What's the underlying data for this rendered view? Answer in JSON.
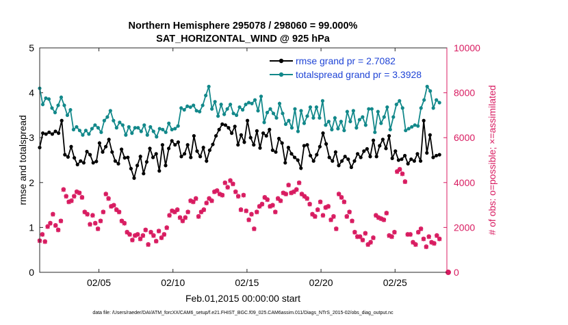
{
  "chart_data": {
    "type": "line",
    "title_line1": "Northern Hemisphere 295078 / 298060 = 99.000%",
    "title_line2": "SAT_HORIZONTAL_WIND @ 925 hPa",
    "xlabel": "Feb.01,2015 00:00:00 start",
    "ylabel_left": "rmse and totalspread",
    "ylabel_right": "# of obs: o=possible; ×=assimilated",
    "footer": "data file: /Users/raeder/DAI/ATM_forcXX/CAM6_setup/f.e21.FHIST_BGC.f09_025.CAM6assim.011/Diags_NTrS_2015-02/obs_diag_output.nc",
    "x_range_days": [
      1,
      28.5
    ],
    "x_ticks": [
      {
        "day": 5,
        "label": "02/05"
      },
      {
        "day": 10,
        "label": "02/10"
      },
      {
        "day": 15,
        "label": "02/15"
      },
      {
        "day": 20,
        "label": "02/20"
      },
      {
        "day": 25,
        "label": "02/25"
      }
    ],
    "ylim_left": [
      0,
      5
    ],
    "yticks_left": [
      "0",
      "1",
      "2",
      "3",
      "4",
      "5"
    ],
    "ylim_right": [
      0,
      10000
    ],
    "yticks_right": [
      "0",
      "2000",
      "4000",
      "6000",
      "8000",
      "10000"
    ],
    "legend_position": "top-right",
    "series": [
      {
        "name": "rmse grand pr = 2.7082",
        "axis": "left",
        "color": "#000000",
        "values": [
          2.78,
          3.1,
          3.08,
          3.12,
          3.08,
          3.14,
          3.1,
          3.38,
          2.62,
          2.57,
          2.8,
          2.55,
          2.4,
          2.48,
          2.44,
          2.69,
          2.62,
          2.44,
          2.47,
          2.88,
          2.68,
          2.8,
          2.96,
          2.68,
          2.48,
          2.42,
          2.74,
          2.55,
          2.56,
          2.31,
          2.1,
          2.38,
          2.58,
          2.2,
          2.46,
          2.76,
          2.56,
          2.64,
          2.26,
          2.84,
          2.38,
          2.76,
          2.93,
          2.84,
          2.9,
          2.58,
          2.64,
          2.84,
          2.56,
          3.04,
          2.7,
          2.58,
          2.78,
          2.48,
          2.72,
          2.85,
          3.04,
          3.18,
          3.3,
          3.28,
          3.22,
          3.1,
          3.25,
          2.84,
          3.06,
          2.9,
          3.38,
          3.0,
          2.84,
          3.15,
          2.77,
          3.1,
          3.04,
          3.18,
          2.72,
          2.68,
          2.98,
          2.88,
          2.44,
          2.78,
          2.64,
          2.56,
          2.5,
          2.32,
          2.82,
          2.84,
          2.6,
          2.48,
          2.62,
          2.8,
          3.1,
          2.86,
          2.56,
          2.48,
          2.68,
          2.38,
          2.48,
          2.58,
          2.52,
          2.34,
          2.48,
          2.64,
          2.56,
          2.7,
          2.75,
          2.58,
          2.94,
          2.58,
          2.82,
          2.96,
          2.76,
          3.04,
          2.54,
          2.7,
          2.5,
          2.52,
          2.6,
          2.42,
          2.52,
          2.48,
          2.64,
          2.48,
          3.38,
          2.66,
          3.06,
          2.56,
          2.6,
          2.62
        ]
      },
      {
        "name": "totalspread grand pr = 3.3928",
        "axis": "left",
        "color": "#12888A",
        "values": [
          4.1,
          3.74,
          3.88,
          3.86,
          3.66,
          3.56,
          3.72,
          3.9,
          3.72,
          3.5,
          3.62,
          3.18,
          3.24,
          3.16,
          3.06,
          3.16,
          3.08,
          3.2,
          3.28,
          3.22,
          3.12,
          3.38,
          3.46,
          3.6,
          3.38,
          3.22,
          3.34,
          3.28,
          3.06,
          3.24,
          3.1,
          3.22,
          3.22,
          3.14,
          3.28,
          3.06,
          3.24,
          3.14,
          3.02,
          3.2,
          3.18,
          3.12,
          3.32,
          3.18,
          3.2,
          3.26,
          3.66,
          3.62,
          3.7,
          3.68,
          3.72,
          3.6,
          3.58,
          3.72,
          3.94,
          4.14,
          3.64,
          3.8,
          3.48,
          3.74,
          3.52,
          3.64,
          3.74,
          3.54,
          3.5,
          3.68,
          3.62,
          3.74,
          3.78,
          3.76,
          3.84,
          3.6,
          3.92,
          3.34,
          3.56,
          3.64,
          3.54,
          3.44,
          3.76,
          3.54,
          3.3,
          3.38,
          3.22,
          3.64,
          3.14,
          3.6,
          3.32,
          3.48,
          3.68,
          3.44,
          3.68,
          3.44,
          3.82,
          3.28,
          3.36,
          3.18,
          3.44,
          3.2,
          3.36,
          3.16,
          3.58,
          3.36,
          3.6,
          3.22,
          3.4,
          3.46,
          3.28,
          3.64,
          3.64,
          3.12,
          3.58,
          3.32,
          3.46,
          3.68,
          3.18,
          3.46,
          3.74,
          3.82,
          3.66,
          3.16,
          3.2,
          3.24,
          3.28,
          3.26,
          3.66,
          3.84,
          4.14,
          4.04,
          3.66,
          3.84,
          3.78
        ]
      },
      {
        "name": "# of obs possible",
        "axis": "right",
        "color": "#D81B60",
        "marker": "o",
        "values": [
          1420,
          1700,
          1380,
          2050,
          2200,
          2600,
          2100,
          1900,
          2300,
          3700,
          3400,
          3150,
          3200,
          3400,
          3600,
          3550,
          3350,
          2700,
          2600,
          2150,
          2550,
          2200,
          1950,
          2300,
          2700,
          3500,
          3300,
          2950,
          3000,
          2800,
          2700,
          2300,
          2200,
          1800,
          1700,
          1450,
          1650,
          1700,
          1500,
          1650,
          1900,
          1250,
          1800,
          1650,
          1400,
          1850,
          1550,
          1700,
          2000,
          2550,
          2750,
          2700,
          2800,
          2450,
          2300,
          2450,
          2700,
          3200,
          3150,
          3300,
          2500,
          2700,
          2800,
          3100,
          3300,
          3200,
          3600,
          3650,
          3500,
          3450,
          4000,
          3800,
          4100,
          3950,
          3600,
          3400,
          2800,
          3450,
          2750,
          2350,
          2600,
          1950,
          2700,
          2950,
          3050,
          3350,
          3250,
          2950,
          3000,
          2700,
          3300,
          3200,
          3550,
          3500,
          3900,
          3550,
          3600,
          3700,
          4000,
          3500,
          3400,
          3300,
          3050,
          2600,
          2500,
          2800,
          3150,
          2550,
          2900,
          2950,
          2350,
          2500,
          1950,
          3500,
          3350,
          3150,
          2500,
          2700,
          2300,
          1800,
          1600,
          1600,
          1450,
          1750,
          1250,
          1350,
          1550,
          2550,
          2450,
          2400,
          2350,
          2650,
          1650,
          1600,
          1800,
          4500,
          4600,
          4400,
          4050,
          1700,
          1700,
          1350,
          1250,
          1800,
          1950,
          1500,
          1150,
          1600,
          1350,
          1300,
          1650,
          1500
        ]
      },
      {
        "name": "# of obs assimilated",
        "axis": "right",
        "color": "#D81B60",
        "marker": "x",
        "values": [
          1400,
          1680,
          1360,
          2030,
          2180,
          2580,
          2080,
          1880,
          2280,
          3680,
          3380,
          3130,
          3180,
          3380,
          3580,
          3530,
          3330,
          2680,
          2580,
          2130,
          2530,
          2180,
          1930,
          2280,
          2680,
          3480,
          3280,
          2930,
          2980,
          2780,
          2680,
          2280,
          2180,
          1780,
          1680,
          1430,
          1630,
          1680,
          1480,
          1630,
          1880,
          1230,
          1780,
          1630,
          1380,
          1830,
          1530,
          1680,
          1980,
          2530,
          2730,
          2680,
          2780,
          2430,
          2280,
          2430,
          2680,
          3180,
          3130,
          3280,
          2480,
          2680,
          2780,
          3080,
          3280,
          3180,
          3580,
          3630,
          3480,
          3430,
          3980,
          3780,
          4080,
          3930,
          3580,
          3380,
          2780,
          3430,
          2730,
          2330,
          2580,
          1930,
          2680,
          2930,
          3030,
          3330,
          3230,
          2930,
          2980,
          2680,
          3280,
          3180,
          3530,
          3480,
          3880,
          3530,
          3580,
          3680,
          3980,
          3480,
          3380,
          3280,
          3030,
          2580,
          2480,
          2780,
          3130,
          2530,
          2880,
          2930,
          2330,
          2480,
          1930,
          3480,
          3330,
          3130,
          2480,
          2680,
          2280,
          1780,
          1580,
          1580,
          1430,
          1730,
          1230,
          1330,
          1530,
          2530,
          2430,
          2380,
          2330,
          2630,
          1630,
          1580,
          1780,
          4480,
          4580,
          4380,
          4030,
          1680,
          1680,
          1330,
          1230,
          1780,
          1930,
          1480,
          1130,
          1580,
          1330,
          1280,
          1630,
          1480
        ]
      }
    ]
  }
}
